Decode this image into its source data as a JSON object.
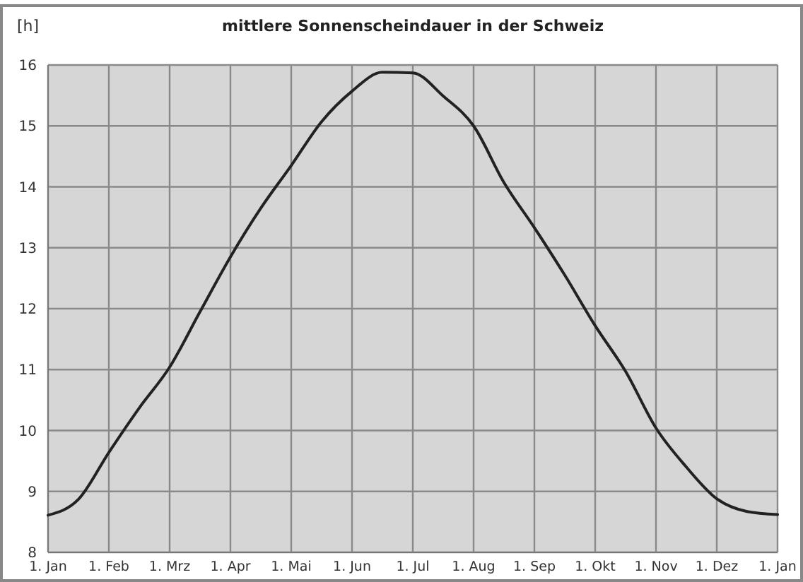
{
  "chart_data": {
    "type": "line",
    "title": "mittlere Sonnenscheindauer in der Schweiz",
    "ylabel": "[h]",
    "categories": [
      "1. Jan",
      null,
      "1. Feb",
      null,
      "1. Mrz",
      null,
      "1. Apr",
      null,
      "1. Mai",
      null,
      "1. Jun",
      null,
      "1. Jul",
      null,
      "1. Aug",
      null,
      "1. Sep",
      null,
      "1. Okt",
      null,
      "1. Nov",
      null,
      "1. Dez",
      null,
      "1. Jan"
    ],
    "series": [
      {
        "color": "#222222",
        "values": [
          8.61,
          8.87,
          9.64,
          10.37,
          11.04,
          11.95,
          12.85,
          13.65,
          14.35,
          15.07,
          15.57,
          15.88,
          15.87,
          15.49,
          15.0,
          14.07,
          13.33,
          12.55,
          11.72,
          10.97,
          10.04,
          9.4,
          8.88,
          8.67,
          8.62
        ]
      }
    ],
    "ylim": [
      8,
      16
    ],
    "yticks": [
      8,
      9,
      10,
      11,
      12,
      13,
      14,
      15,
      16
    ],
    "grid": true,
    "marker": "none",
    "line_style": "solid"
  }
}
